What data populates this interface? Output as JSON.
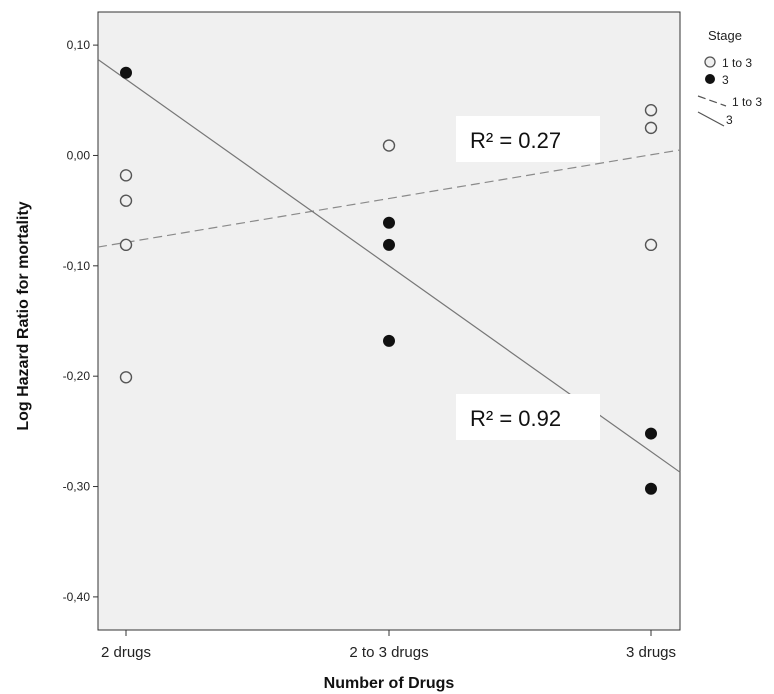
{
  "chart_data": {
    "type": "scatter",
    "title": "",
    "xlabel": "Number of Drugs",
    "ylabel": "Log Hazard Ratio for mortality",
    "categories": [
      "2 drugs",
      "2 to 3 drugs",
      "3 drugs"
    ],
    "ylim": [
      -0.43,
      0.13
    ],
    "yticks": [
      0.1,
      0.0,
      -0.1,
      -0.2,
      -0.3,
      -0.4
    ],
    "ytick_labels": [
      "0,10",
      "0,00",
      "-0,10",
      "-0,20",
      "-0,30",
      "-0,40"
    ],
    "grid": false,
    "legend": {
      "title": "Stage",
      "placement": "right",
      "entries": [
        {
          "label": "1 to 3",
          "marker": "open-circle"
        },
        {
          "label": "3",
          "marker": "filled-circle"
        },
        {
          "label": "1 to 3",
          "marker": "dashed-line"
        },
        {
          "label": "3",
          "marker": "solid-line"
        }
      ]
    },
    "series": [
      {
        "name": "1 to 3",
        "marker": "open-circle",
        "points": [
          {
            "x": "2 drugs",
            "y": -0.018
          },
          {
            "x": "2 drugs",
            "y": -0.041
          },
          {
            "x": "2 drugs",
            "y": -0.081
          },
          {
            "x": "2 drugs",
            "y": -0.201
          },
          {
            "x": "2 to 3 drugs",
            "y": 0.009
          },
          {
            "x": "3 drugs",
            "y": 0.041
          },
          {
            "x": "3 drugs",
            "y": 0.025
          },
          {
            "x": "3 drugs",
            "y": -0.081
          }
        ],
        "fit": {
          "style": "dashed",
          "start": -0.083,
          "end": 0.005,
          "r2_label": "R² = 0.27"
        }
      },
      {
        "name": "3",
        "marker": "filled-circle",
        "points": [
          {
            "x": "2 drugs",
            "y": 0.075
          },
          {
            "x": "2 to 3 drugs",
            "y": -0.061
          },
          {
            "x": "2 to 3 drugs",
            "y": -0.081
          },
          {
            "x": "2 to 3 drugs",
            "y": -0.168
          },
          {
            "x": "3 drugs",
            "y": -0.252
          },
          {
            "x": "3 drugs",
            "y": -0.302
          }
        ],
        "fit": {
          "style": "solid",
          "start": 0.087,
          "end": -0.287,
          "r2_label": "R² = 0.92"
        }
      }
    ]
  },
  "colors": {
    "plot_background": "#f0f0f0",
    "axis": "#333333",
    "fit_solid": "#777777",
    "fit_dashed": "#8a8a8a",
    "filled_marker": "#111111",
    "open_marker_stroke": "#555555",
    "annotation_box": "#ffffff"
  }
}
